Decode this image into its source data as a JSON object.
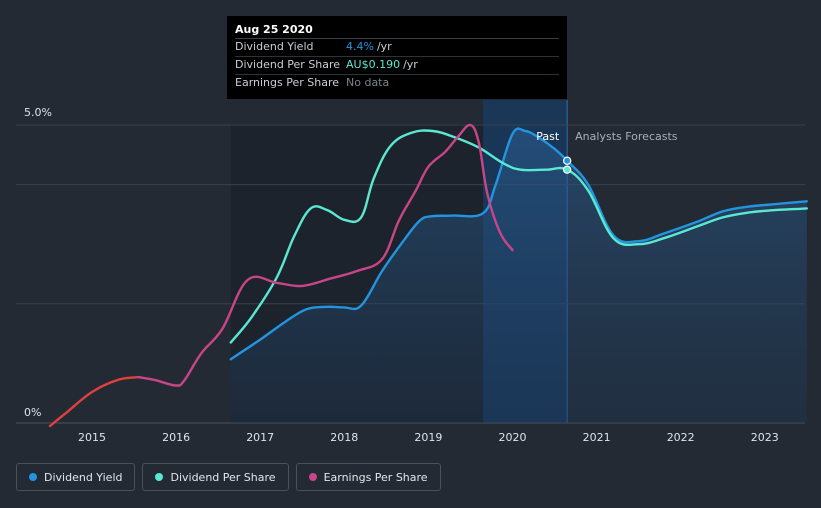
{
  "colors": {
    "background": "#232a34",
    "dividend_yield": "#2394df",
    "dividend_per_share": "#5ae8d2",
    "earnings_per_share": "#c74588",
    "earnings_early": "#e04040",
    "past_band": "#1a3a5e"
  },
  "tooltip": {
    "date": "Aug 25 2020",
    "rows": [
      {
        "name": "Dividend Yield",
        "value": "4.4%",
        "unit": "/yr"
      },
      {
        "name": "Dividend Per Share",
        "value": "AU$0.190",
        "unit": "/yr"
      },
      {
        "name": "Earnings Per Share",
        "value": "No data",
        "unit": ""
      }
    ]
  },
  "legend": [
    {
      "label": "Dividend Yield",
      "color": "#2394df"
    },
    {
      "label": "Dividend Per Share",
      "color": "#5ae8d2"
    },
    {
      "label": "Earnings Per Share",
      "color": "#c74588"
    }
  ],
  "chart_data": {
    "type": "line",
    "title": "",
    "xlabel": "",
    "ylabel": "",
    "x_ticks": [
      "2015",
      "2016",
      "2017",
      "2018",
      "2019",
      "2020",
      "2021",
      "2022",
      "2023"
    ],
    "y_ticks": [
      "0%",
      "5.0%"
    ],
    "ylim": [
      0,
      5.0
    ],
    "xlim": [
      2014.4,
      2023.5
    ],
    "past_label": "Past",
    "forecast_label": "Analysts Forecasts",
    "past_boundary": 2020.65,
    "highlight_start": 2019.65,
    "series": [
      {
        "name": "Dividend Yield",
        "unit": "%",
        "points": [
          [
            2016.65,
            1.07
          ],
          [
            2017.0,
            1.4
          ],
          [
            2017.3,
            1.7
          ],
          [
            2017.55,
            1.91
          ],
          [
            2017.8,
            1.95
          ],
          [
            2018.0,
            1.94
          ],
          [
            2018.2,
            1.97
          ],
          [
            2018.45,
            2.55
          ],
          [
            2018.7,
            3.05
          ],
          [
            2018.9,
            3.4
          ],
          [
            2019.05,
            3.47
          ],
          [
            2019.3,
            3.48
          ],
          [
            2019.65,
            3.52
          ],
          [
            2019.8,
            4.0
          ],
          [
            2020.0,
            4.85
          ],
          [
            2020.15,
            4.9
          ],
          [
            2020.3,
            4.8
          ],
          [
            2020.5,
            4.6
          ],
          [
            2020.65,
            4.4
          ],
          [
            2020.9,
            4.0
          ],
          [
            2021.2,
            3.15
          ],
          [
            2021.5,
            3.05
          ],
          [
            2021.8,
            3.18
          ],
          [
            2022.2,
            3.38
          ],
          [
            2022.5,
            3.55
          ],
          [
            2022.8,
            3.63
          ],
          [
            2023.1,
            3.67
          ],
          [
            2023.5,
            3.72
          ]
        ]
      },
      {
        "name": "Dividend Per Share",
        "unit": "AU$",
        "points": [
          [
            2016.65,
            1.35
          ],
          [
            2016.9,
            1.78
          ],
          [
            2017.2,
            2.45
          ],
          [
            2017.4,
            3.12
          ],
          [
            2017.6,
            3.6
          ],
          [
            2017.8,
            3.57
          ],
          [
            2018.0,
            3.41
          ],
          [
            2018.2,
            3.45
          ],
          [
            2018.35,
            4.1
          ],
          [
            2018.55,
            4.65
          ],
          [
            2018.8,
            4.87
          ],
          [
            2019.05,
            4.9
          ],
          [
            2019.3,
            4.8
          ],
          [
            2019.6,
            4.62
          ],
          [
            2019.9,
            4.35
          ],
          [
            2020.1,
            4.25
          ],
          [
            2020.4,
            4.25
          ],
          [
            2020.65,
            4.25
          ],
          [
            2020.9,
            3.9
          ],
          [
            2021.2,
            3.1
          ],
          [
            2021.5,
            3.0
          ],
          [
            2021.8,
            3.1
          ],
          [
            2022.2,
            3.3
          ],
          [
            2022.5,
            3.45
          ],
          [
            2022.8,
            3.53
          ],
          [
            2023.1,
            3.57
          ],
          [
            2023.5,
            3.6
          ]
        ]
      },
      {
        "name": "Earnings Per Share",
        "unit": "AU$",
        "points": [
          [
            2014.5,
            -0.05
          ],
          [
            2014.7,
            0.18
          ],
          [
            2015.0,
            0.52
          ],
          [
            2015.3,
            0.72
          ],
          [
            2015.55,
            0.77
          ],
          [
            2015.75,
            0.72
          ],
          [
            2016.0,
            0.63
          ],
          [
            2016.1,
            0.72
          ],
          [
            2016.3,
            1.17
          ],
          [
            2016.55,
            1.58
          ],
          [
            2016.85,
            2.4
          ],
          [
            2017.2,
            2.35
          ],
          [
            2017.5,
            2.3
          ],
          [
            2017.85,
            2.43
          ],
          [
            2018.15,
            2.55
          ],
          [
            2018.45,
            2.75
          ],
          [
            2018.65,
            3.4
          ],
          [
            2018.85,
            3.9
          ],
          [
            2019.0,
            4.3
          ],
          [
            2019.2,
            4.55
          ],
          [
            2019.35,
            4.8
          ],
          [
            2019.5,
            5.0
          ],
          [
            2019.6,
            4.7
          ],
          [
            2019.7,
            3.85
          ],
          [
            2019.85,
            3.2
          ],
          [
            2020.0,
            2.9
          ]
        ]
      }
    ],
    "tooltip_markers": [
      {
        "series": "Dividend Yield",
        "x": 2020.65,
        "y": 4.4
      },
      {
        "series": "Dividend Per Share",
        "x": 2020.65,
        "y": 4.25
      }
    ]
  }
}
